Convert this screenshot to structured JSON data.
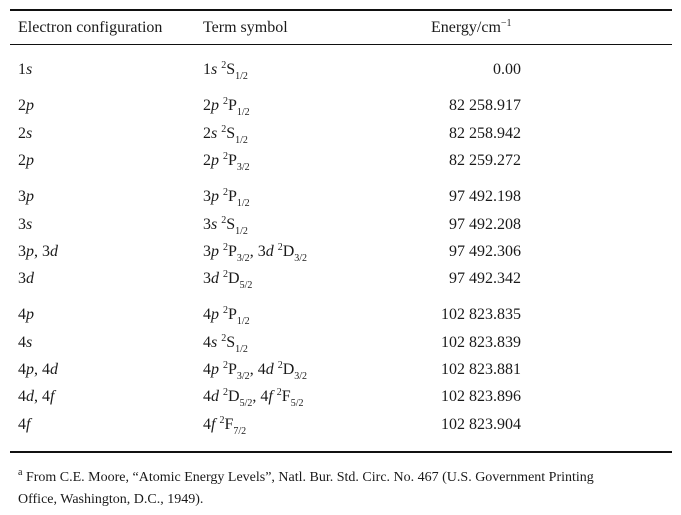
{
  "table": {
    "headers": {
      "configuration": "Electron configuration",
      "term": "Term symbol",
      "energy": "Energy/cm",
      "energy_exp": "−1"
    },
    "groups": [
      [
        {
          "config": [
            [
              "1",
              "s"
            ]
          ],
          "terms": [
            {
              "n": "1",
              "l": "s",
              "mult": "2",
              "L": "S",
              "J": "1/2"
            }
          ],
          "energy": "0.00"
        }
      ],
      [
        {
          "config": [
            [
              "2",
              "p"
            ]
          ],
          "terms": [
            {
              "n": "2",
              "l": "p",
              "mult": "2",
              "L": "P",
              "J": "1/2"
            }
          ],
          "energy": "82 258.917"
        },
        {
          "config": [
            [
              "2",
              "s"
            ]
          ],
          "terms": [
            {
              "n": "2",
              "l": "s",
              "mult": "2",
              "L": "S",
              "J": "1/2"
            }
          ],
          "energy": "82 258.942"
        },
        {
          "config": [
            [
              "2",
              "p"
            ]
          ],
          "terms": [
            {
              "n": "2",
              "l": "p",
              "mult": "2",
              "L": "P",
              "J": "3/2"
            }
          ],
          "energy": "82 259.272"
        }
      ],
      [
        {
          "config": [
            [
              "3",
              "p"
            ]
          ],
          "terms": [
            {
              "n": "3",
              "l": "p",
              "mult": "2",
              "L": "P",
              "J": "1/2"
            }
          ],
          "energy": "97 492.198"
        },
        {
          "config": [
            [
              "3",
              "s"
            ]
          ],
          "terms": [
            {
              "n": "3",
              "l": "s",
              "mult": "2",
              "L": "S",
              "J": "1/2"
            }
          ],
          "energy": "97 492.208"
        },
        {
          "config": [
            [
              "3",
              "p"
            ],
            [
              "3",
              "d"
            ]
          ],
          "terms": [
            {
              "n": "3",
              "l": "p",
              "mult": "2",
              "L": "P",
              "J": "3/2"
            },
            {
              "n": "3",
              "l": "d",
              "mult": "2",
              "L": "D",
              "J": "3/2"
            }
          ],
          "energy": "97 492.306"
        },
        {
          "config": [
            [
              "3",
              "d"
            ]
          ],
          "terms": [
            {
              "n": "3",
              "l": "d",
              "mult": "2",
              "L": "D",
              "J": "5/2"
            }
          ],
          "energy": "97 492.342"
        }
      ],
      [
        {
          "config": [
            [
              "4",
              "p"
            ]
          ],
          "terms": [
            {
              "n": "4",
              "l": "p",
              "mult": "2",
              "L": "P",
              "J": "1/2"
            }
          ],
          "energy": "102 823.835"
        },
        {
          "config": [
            [
              "4",
              "s"
            ]
          ],
          "terms": [
            {
              "n": "4",
              "l": "s",
              "mult": "2",
              "L": "S",
              "J": "1/2"
            }
          ],
          "energy": "102 823.839"
        },
        {
          "config": [
            [
              "4",
              "p"
            ],
            [
              "4",
              "d"
            ]
          ],
          "terms": [
            {
              "n": "4",
              "l": "p",
              "mult": "2",
              "L": "P",
              "J": "3/2"
            },
            {
              "n": "4",
              "l": "d",
              "mult": "2",
              "L": "D",
              "J": "3/2"
            }
          ],
          "energy": "102 823.881"
        },
        {
          "config": [
            [
              "4",
              "d"
            ],
            [
              "4",
              "f"
            ]
          ],
          "terms": [
            {
              "n": "4",
              "l": "d",
              "mult": "2",
              "L": "D",
              "J": "5/2"
            },
            {
              "n": "4",
              "l": "f",
              "mult": "2",
              "L": "F",
              "J": "5/2"
            }
          ],
          "energy": "102 823.896"
        },
        {
          "config": [
            [
              "4",
              "f"
            ]
          ],
          "terms": [
            {
              "n": "4",
              "l": "f",
              "mult": "2",
              "L": "F",
              "J": "7/2"
            }
          ],
          "energy": "102 823.904"
        }
      ]
    ],
    "separator": ", "
  },
  "footnote": {
    "marker": "a",
    "line1": " From C.E. Moore, “Atomic Energy Levels”, Natl. Bur. Std. Circ. No. 467 (U.S. Government Printing",
    "line2": "Office, Washington, D.C., 1949)."
  }
}
